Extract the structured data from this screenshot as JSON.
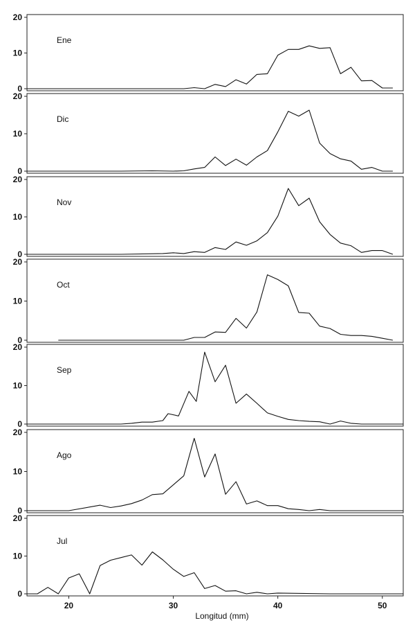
{
  "chart_data": {
    "type": "line",
    "layout": "stacked-panels",
    "xlabel": "Longitud (mm)",
    "ylabel": "",
    "xlim": [
      16,
      52
    ],
    "ylim": [
      0,
      20
    ],
    "x_ticks": [
      20,
      30,
      40,
      50
    ],
    "y_ticks": [
      0,
      10,
      20
    ],
    "panels": [
      {
        "name": "Ene",
        "points": [
          [
            16,
            0
          ],
          [
            20,
            0
          ],
          [
            25,
            0
          ],
          [
            30,
            0
          ],
          [
            31,
            0
          ],
          [
            32,
            0.3
          ],
          [
            33,
            0
          ],
          [
            34,
            1.2
          ],
          [
            35,
            0.6
          ],
          [
            36,
            2.5
          ],
          [
            37,
            1.3
          ],
          [
            38,
            4
          ],
          [
            39,
            4.2
          ],
          [
            40,
            9.4
          ],
          [
            41,
            11
          ],
          [
            42,
            11
          ],
          [
            43,
            12
          ],
          [
            44,
            11.3
          ],
          [
            45,
            11.5
          ],
          [
            46,
            4.2
          ],
          [
            47,
            6
          ],
          [
            48,
            2.2
          ],
          [
            49,
            2.3
          ],
          [
            50,
            0.2
          ],
          [
            51,
            0.2
          ]
        ]
      },
      {
        "name": "Dic",
        "points": [
          [
            16,
            0
          ],
          [
            20,
            0
          ],
          [
            25,
            0
          ],
          [
            28,
            0.1
          ],
          [
            30,
            0
          ],
          [
            31,
            0.1
          ],
          [
            32,
            0.6
          ],
          [
            33,
            1
          ],
          [
            34,
            3.8
          ],
          [
            35,
            1.5
          ],
          [
            36,
            3.2
          ],
          [
            37,
            1.6
          ],
          [
            38,
            3.8
          ],
          [
            39,
            5.5
          ],
          [
            40,
            10.5
          ],
          [
            41,
            16
          ],
          [
            42,
            14.7
          ],
          [
            43,
            16.3
          ],
          [
            44,
            7.5
          ],
          [
            45,
            4.7
          ],
          [
            46,
            3.3
          ],
          [
            47,
            2.7
          ],
          [
            48,
            0.5
          ],
          [
            49,
            1
          ],
          [
            50,
            0
          ],
          [
            51,
            0
          ]
        ]
      },
      {
        "name": "Nov",
        "points": [
          [
            16,
            0
          ],
          [
            20,
            0
          ],
          [
            25,
            0
          ],
          [
            29,
            0.2
          ],
          [
            30,
            0.4
          ],
          [
            31,
            0.2
          ],
          [
            32,
            0.7
          ],
          [
            33,
            0.5
          ],
          [
            34,
            1.8
          ],
          [
            35,
            1.3
          ],
          [
            36,
            3.3
          ],
          [
            37,
            2.4
          ],
          [
            38,
            3.6
          ],
          [
            39,
            5.8
          ],
          [
            40,
            10.2
          ],
          [
            41,
            17.6
          ],
          [
            42,
            13
          ],
          [
            43,
            15
          ],
          [
            44,
            8.7
          ],
          [
            45,
            5.3
          ],
          [
            46,
            3
          ],
          [
            47,
            2.3
          ],
          [
            48,
            0.5
          ],
          [
            49,
            1
          ],
          [
            50,
            1
          ],
          [
            51,
            0
          ]
        ]
      },
      {
        "name": "Oct",
        "points": [
          [
            19,
            0
          ],
          [
            25,
            0
          ],
          [
            30,
            0
          ],
          [
            31,
            0
          ],
          [
            32,
            0.7
          ],
          [
            33,
            0.7
          ],
          [
            34,
            2.1
          ],
          [
            35,
            2
          ],
          [
            36,
            5.6
          ],
          [
            37,
            3.1
          ],
          [
            38,
            7.2
          ],
          [
            39,
            16.7
          ],
          [
            40,
            15.5
          ],
          [
            41,
            13.9
          ],
          [
            42,
            7.1
          ],
          [
            43,
            6.9
          ],
          [
            44,
            3.6
          ],
          [
            45,
            3
          ],
          [
            46,
            1.5
          ],
          [
            47,
            1.2
          ],
          [
            48,
            1.2
          ],
          [
            49,
            1
          ],
          [
            50,
            0.5
          ],
          [
            51,
            0
          ]
        ]
      },
      {
        "name": "Sep",
        "points": [
          [
            16,
            0
          ],
          [
            20,
            0
          ],
          [
            22,
            0
          ],
          [
            25,
            0
          ],
          [
            26,
            0.2
          ],
          [
            27,
            0.5
          ],
          [
            28,
            0.5
          ],
          [
            29,
            0.9
          ],
          [
            29.5,
            2.7
          ],
          [
            30.5,
            2.1
          ],
          [
            31.5,
            8.5
          ],
          [
            32.2,
            5.9
          ],
          [
            33,
            18.7
          ],
          [
            34,
            11
          ],
          [
            35,
            15.3
          ],
          [
            36,
            5.4
          ],
          [
            37,
            7.8
          ],
          [
            38,
            5.4
          ],
          [
            39,
            2.9
          ],
          [
            40,
            2
          ],
          [
            41,
            1.2
          ],
          [
            42,
            0.9
          ],
          [
            43,
            0.7
          ],
          [
            44,
            0.6
          ],
          [
            45,
            0
          ],
          [
            46,
            0.8
          ],
          [
            47,
            0.2
          ],
          [
            48,
            0
          ],
          [
            50,
            0
          ],
          [
            52,
            0
          ]
        ]
      },
      {
        "name": "Ago",
        "points": [
          [
            16,
            0
          ],
          [
            20,
            0
          ],
          [
            23,
            1.4
          ],
          [
            24,
            0.8
          ],
          [
            25,
            1.2
          ],
          [
            26,
            1.8
          ],
          [
            27,
            2.7
          ],
          [
            28,
            4.1
          ],
          [
            29,
            4.3
          ],
          [
            30,
            6.6
          ],
          [
            31,
            8.9
          ],
          [
            32,
            18.5
          ],
          [
            33,
            8.6
          ],
          [
            34,
            14.5
          ],
          [
            35,
            4.2
          ],
          [
            36,
            7.4
          ],
          [
            37,
            1.7
          ],
          [
            38,
            2.5
          ],
          [
            39,
            1.3
          ],
          [
            40,
            1.3
          ],
          [
            41,
            0.5
          ],
          [
            42,
            0.3
          ],
          [
            43,
            0
          ],
          [
            44,
            0.3
          ],
          [
            45,
            0
          ],
          [
            50,
            0
          ],
          [
            52,
            0
          ]
        ]
      },
      {
        "name": "Jul",
        "points": [
          [
            16,
            0
          ],
          [
            17,
            0
          ],
          [
            18,
            1.7
          ],
          [
            19,
            0
          ],
          [
            20,
            4.2
          ],
          [
            21,
            5.3
          ],
          [
            22,
            0
          ],
          [
            23,
            7.5
          ],
          [
            24,
            8.9
          ],
          [
            25,
            9.6
          ],
          [
            26,
            10.3
          ],
          [
            27,
            7.6
          ],
          [
            28,
            11.1
          ],
          [
            29,
            9
          ],
          [
            30,
            6.5
          ],
          [
            31,
            4.6
          ],
          [
            32,
            5.6
          ],
          [
            33,
            1.4
          ],
          [
            34,
            2.2
          ],
          [
            35,
            0.7
          ],
          [
            36,
            0.8
          ],
          [
            37,
            0
          ],
          [
            38,
            0.4
          ],
          [
            39,
            0
          ],
          [
            40,
            0.2
          ],
          [
            45,
            0
          ],
          [
            50,
            0
          ],
          [
            52,
            0
          ]
        ]
      }
    ]
  }
}
